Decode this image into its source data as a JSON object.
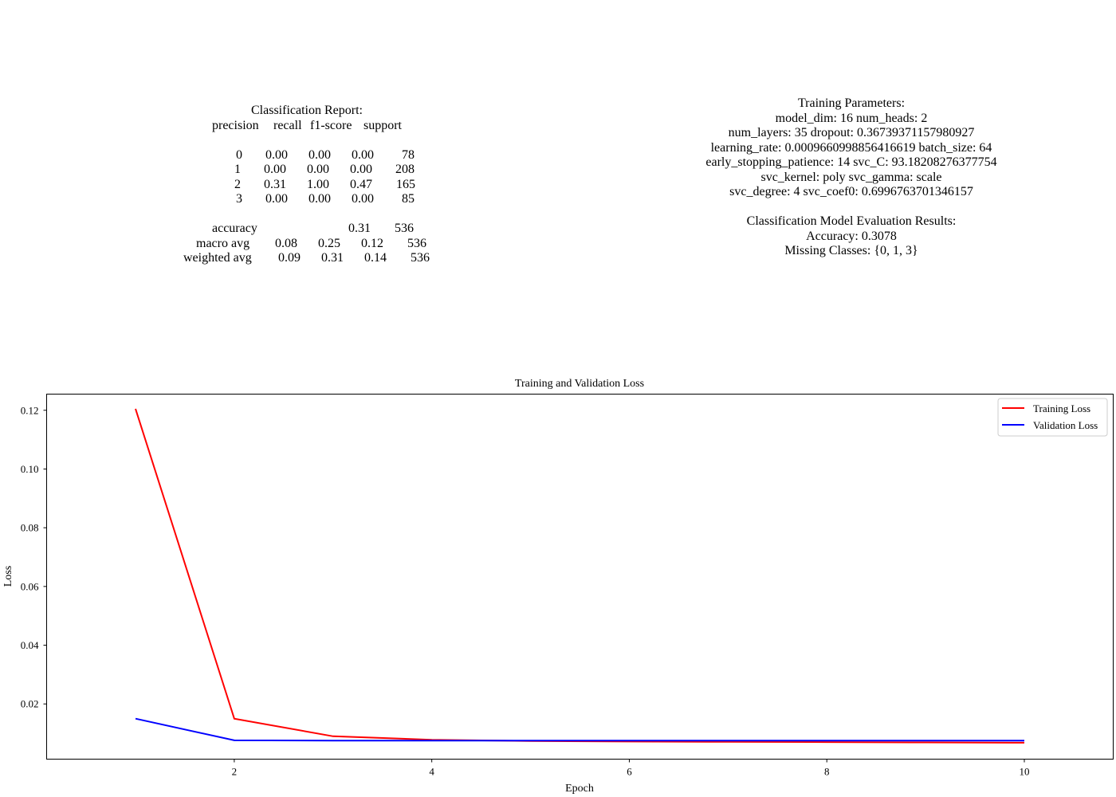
{
  "report": {
    "title": "Classification Report:",
    "header": [
      "precision",
      "recall",
      "f1-score",
      "support"
    ],
    "rows": [
      [
        "0",
        "0.00",
        "0.00",
        "0.00",
        "78"
      ],
      [
        "1",
        "0.00",
        "0.00",
        "0.00",
        "208"
      ],
      [
        "2",
        "0.31",
        "1.00",
        "0.47",
        "165"
      ],
      [
        "3",
        "0.00",
        "0.00",
        "0.00",
        "85"
      ]
    ],
    "accuracy": {
      "label": "accuracy",
      "f1": "0.31",
      "support": "536"
    },
    "macro": [
      "macro avg",
      "0.08",
      "0.25",
      "0.12",
      "536"
    ],
    "weighted": [
      "weighted avg",
      "0.09",
      "0.31",
      "0.14",
      "536"
    ]
  },
  "params": {
    "lines": [
      "Training Parameters:",
      "model_dim: 16    num_heads: 2",
      "num_layers: 35    dropout: 0.36739371157980927",
      "learning_rate: 0.0009660998856416619    batch_size: 64",
      "early_stopping_patience: 14    svc_C: 93.18208276377754",
      "svc_kernel: poly    svc_gamma: scale",
      "svc_degree: 4    svc_coef0: 0.6996763701346157"
    ],
    "results": [
      "Classification Model Evaluation Results:",
      "Accuracy: 0.3078",
      "Missing Classes: {0, 1, 3}"
    ]
  },
  "chart_data": {
    "type": "line",
    "title": "Training and Validation Loss",
    "xlabel": "Epoch",
    "ylabel": "Loss",
    "x": [
      1,
      2,
      3,
      4,
      5,
      6,
      7,
      8,
      9,
      10
    ],
    "xlim": [
      0.1,
      10.9
    ],
    "ylim": [
      0.0012,
      0.1255
    ],
    "xticks": [
      2,
      4,
      6,
      8,
      10
    ],
    "yticks": [
      0.02,
      0.04,
      0.06,
      0.08,
      0.1,
      0.12
    ],
    "ytick_labels": [
      "0.02",
      "0.04",
      "0.06",
      "0.08",
      "0.10",
      "0.12"
    ],
    "grid": false,
    "legend_position": "top-right",
    "series": [
      {
        "name": "Training Loss",
        "color": "#ff0000",
        "values": [
          0.1205,
          0.015,
          0.009,
          0.0078,
          0.0074,
          0.0072,
          0.0071,
          0.007,
          0.0069,
          0.0068
        ]
      },
      {
        "name": "Validation Loss",
        "color": "#0000ff",
        "values": [
          0.015,
          0.0076,
          0.0075,
          0.0075,
          0.0075,
          0.0075,
          0.0075,
          0.0075,
          0.0075,
          0.0075
        ]
      }
    ]
  }
}
